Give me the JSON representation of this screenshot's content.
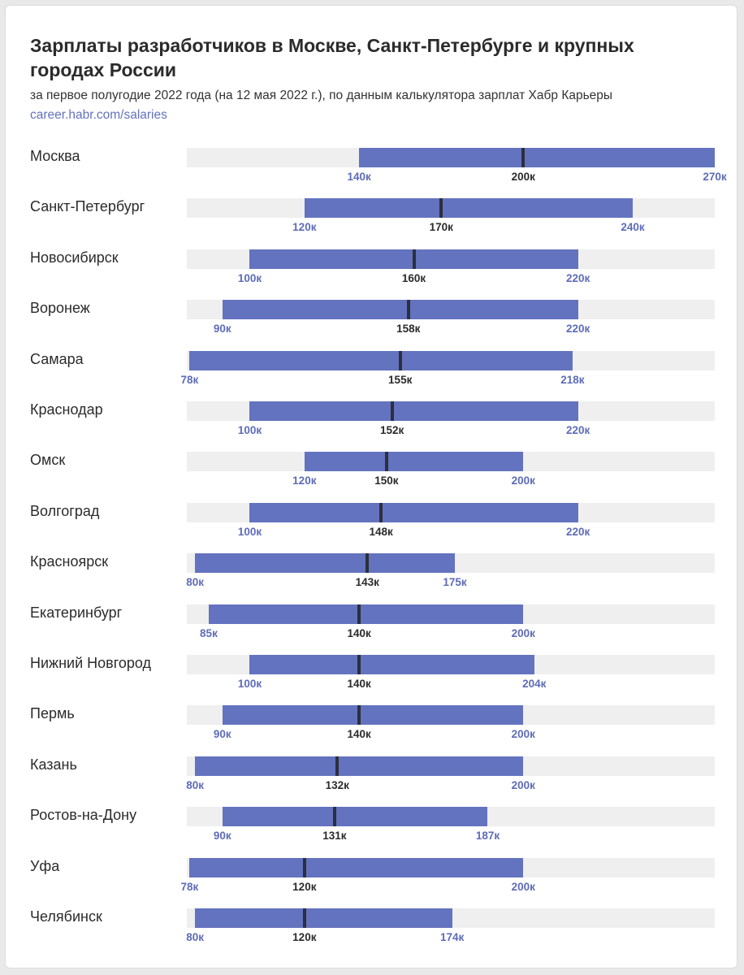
{
  "title": "Зарплаты разработчиков в Москве, Санкт-Петербурге и крупных городах России",
  "subtitle": "за первое полугодие 2022 года (на 12 мая 2022 г.), по данным калькулятора зарплат Хабр Карьеры",
  "source": "career.habr.com/salaries",
  "colors": {
    "range": "#6373bf",
    "median": "#2c2f3d",
    "track": "#efefef",
    "range_label": "#5e6cb8",
    "median_label": "#2b2b2b"
  },
  "chart_data": {
    "type": "range-bar",
    "unit": "к",
    "xlim": [
      77,
      270
    ],
    "categories": [
      "Москва",
      "Санкт-Петербург",
      "Новосибирск",
      "Воронеж",
      "Самара",
      "Краснодар",
      "Омск",
      "Волгоград",
      "Красноярск",
      "Екатеринбург",
      "Нижний Новгород",
      "Пермь",
      "Казань",
      "Ростов-на-Дону",
      "Уфа",
      "Челябинск"
    ],
    "series": [
      {
        "values": [
          140,
          120,
          100,
          90,
          78,
          100,
          120,
          100,
          80,
          85,
          100,
          90,
          80,
          90,
          78,
          80
        ]
      },
      {
        "values": [
          200,
          170,
          160,
          158,
          155,
          152,
          150,
          148,
          143,
          140,
          140,
          140,
          132,
          131,
          120,
          120
        ]
      },
      {
        "values": [
          270,
          240,
          220,
          220,
          218,
          220,
          200,
          220,
          175,
          200,
          204,
          200,
          200,
          187,
          200,
          174
        ]
      }
    ],
    "label_min": [
      "140к",
      "120к",
      "100к",
      "90к",
      "78к",
      "100к",
      "120к",
      "100к",
      "80к",
      "85к",
      "100к",
      "90к",
      "80к",
      "90к",
      "78к",
      "80к"
    ],
    "label_median": [
      "200к",
      "170к",
      "160к",
      "158к",
      "155к",
      "152к",
      "150к",
      "148к",
      "143к",
      "140к",
      "140к",
      "140к",
      "132к",
      "131к",
      "120к",
      "120к"
    ],
    "label_max": [
      "270к",
      "240к",
      "220к",
      "220к",
      "218к",
      "220к",
      "200к",
      "220к",
      "175к",
      "200к",
      "204к",
      "200к",
      "200к",
      "187к",
      "200к",
      "174к"
    ]
  }
}
